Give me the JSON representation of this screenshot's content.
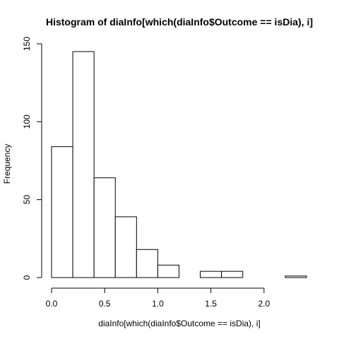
{
  "chart_data": {
    "type": "bar",
    "title": "Histogram of diaInfo[which(diaInfo$Outcome == isDia), i]",
    "xlabel": "diaInfo[which(diaInfo$Outcome == isDia), i]",
    "ylabel": "Frequency",
    "bins": [
      {
        "start": 0.0,
        "end": 0.2,
        "count": 84
      },
      {
        "start": 0.2,
        "end": 0.4,
        "count": 145
      },
      {
        "start": 0.4,
        "end": 0.6,
        "count": 64
      },
      {
        "start": 0.6,
        "end": 0.8,
        "count": 39
      },
      {
        "start": 0.8,
        "end": 1.0,
        "count": 18
      },
      {
        "start": 1.0,
        "end": 1.2,
        "count": 8
      },
      {
        "start": 1.2,
        "end": 1.4,
        "count": 0
      },
      {
        "start": 1.4,
        "end": 1.6,
        "count": 4
      },
      {
        "start": 1.6,
        "end": 1.8,
        "count": 4
      },
      {
        "start": 1.8,
        "end": 2.0,
        "count": 0
      },
      {
        "start": 2.0,
        "end": 2.2,
        "count": 0
      },
      {
        "start": 2.2,
        "end": 2.4,
        "count": 1
      }
    ],
    "xlim": [
      0.0,
      2.4
    ],
    "ylim": [
      0,
      150
    ],
    "x_ticks": [
      "0.0",
      "0.5",
      "1.0",
      "1.5",
      "2.0"
    ],
    "y_ticks": [
      "0",
      "50",
      "100",
      "150"
    ],
    "bar_fill": "#ffffff",
    "bar_stroke": "#000000",
    "grid": false,
    "legend": "none"
  }
}
